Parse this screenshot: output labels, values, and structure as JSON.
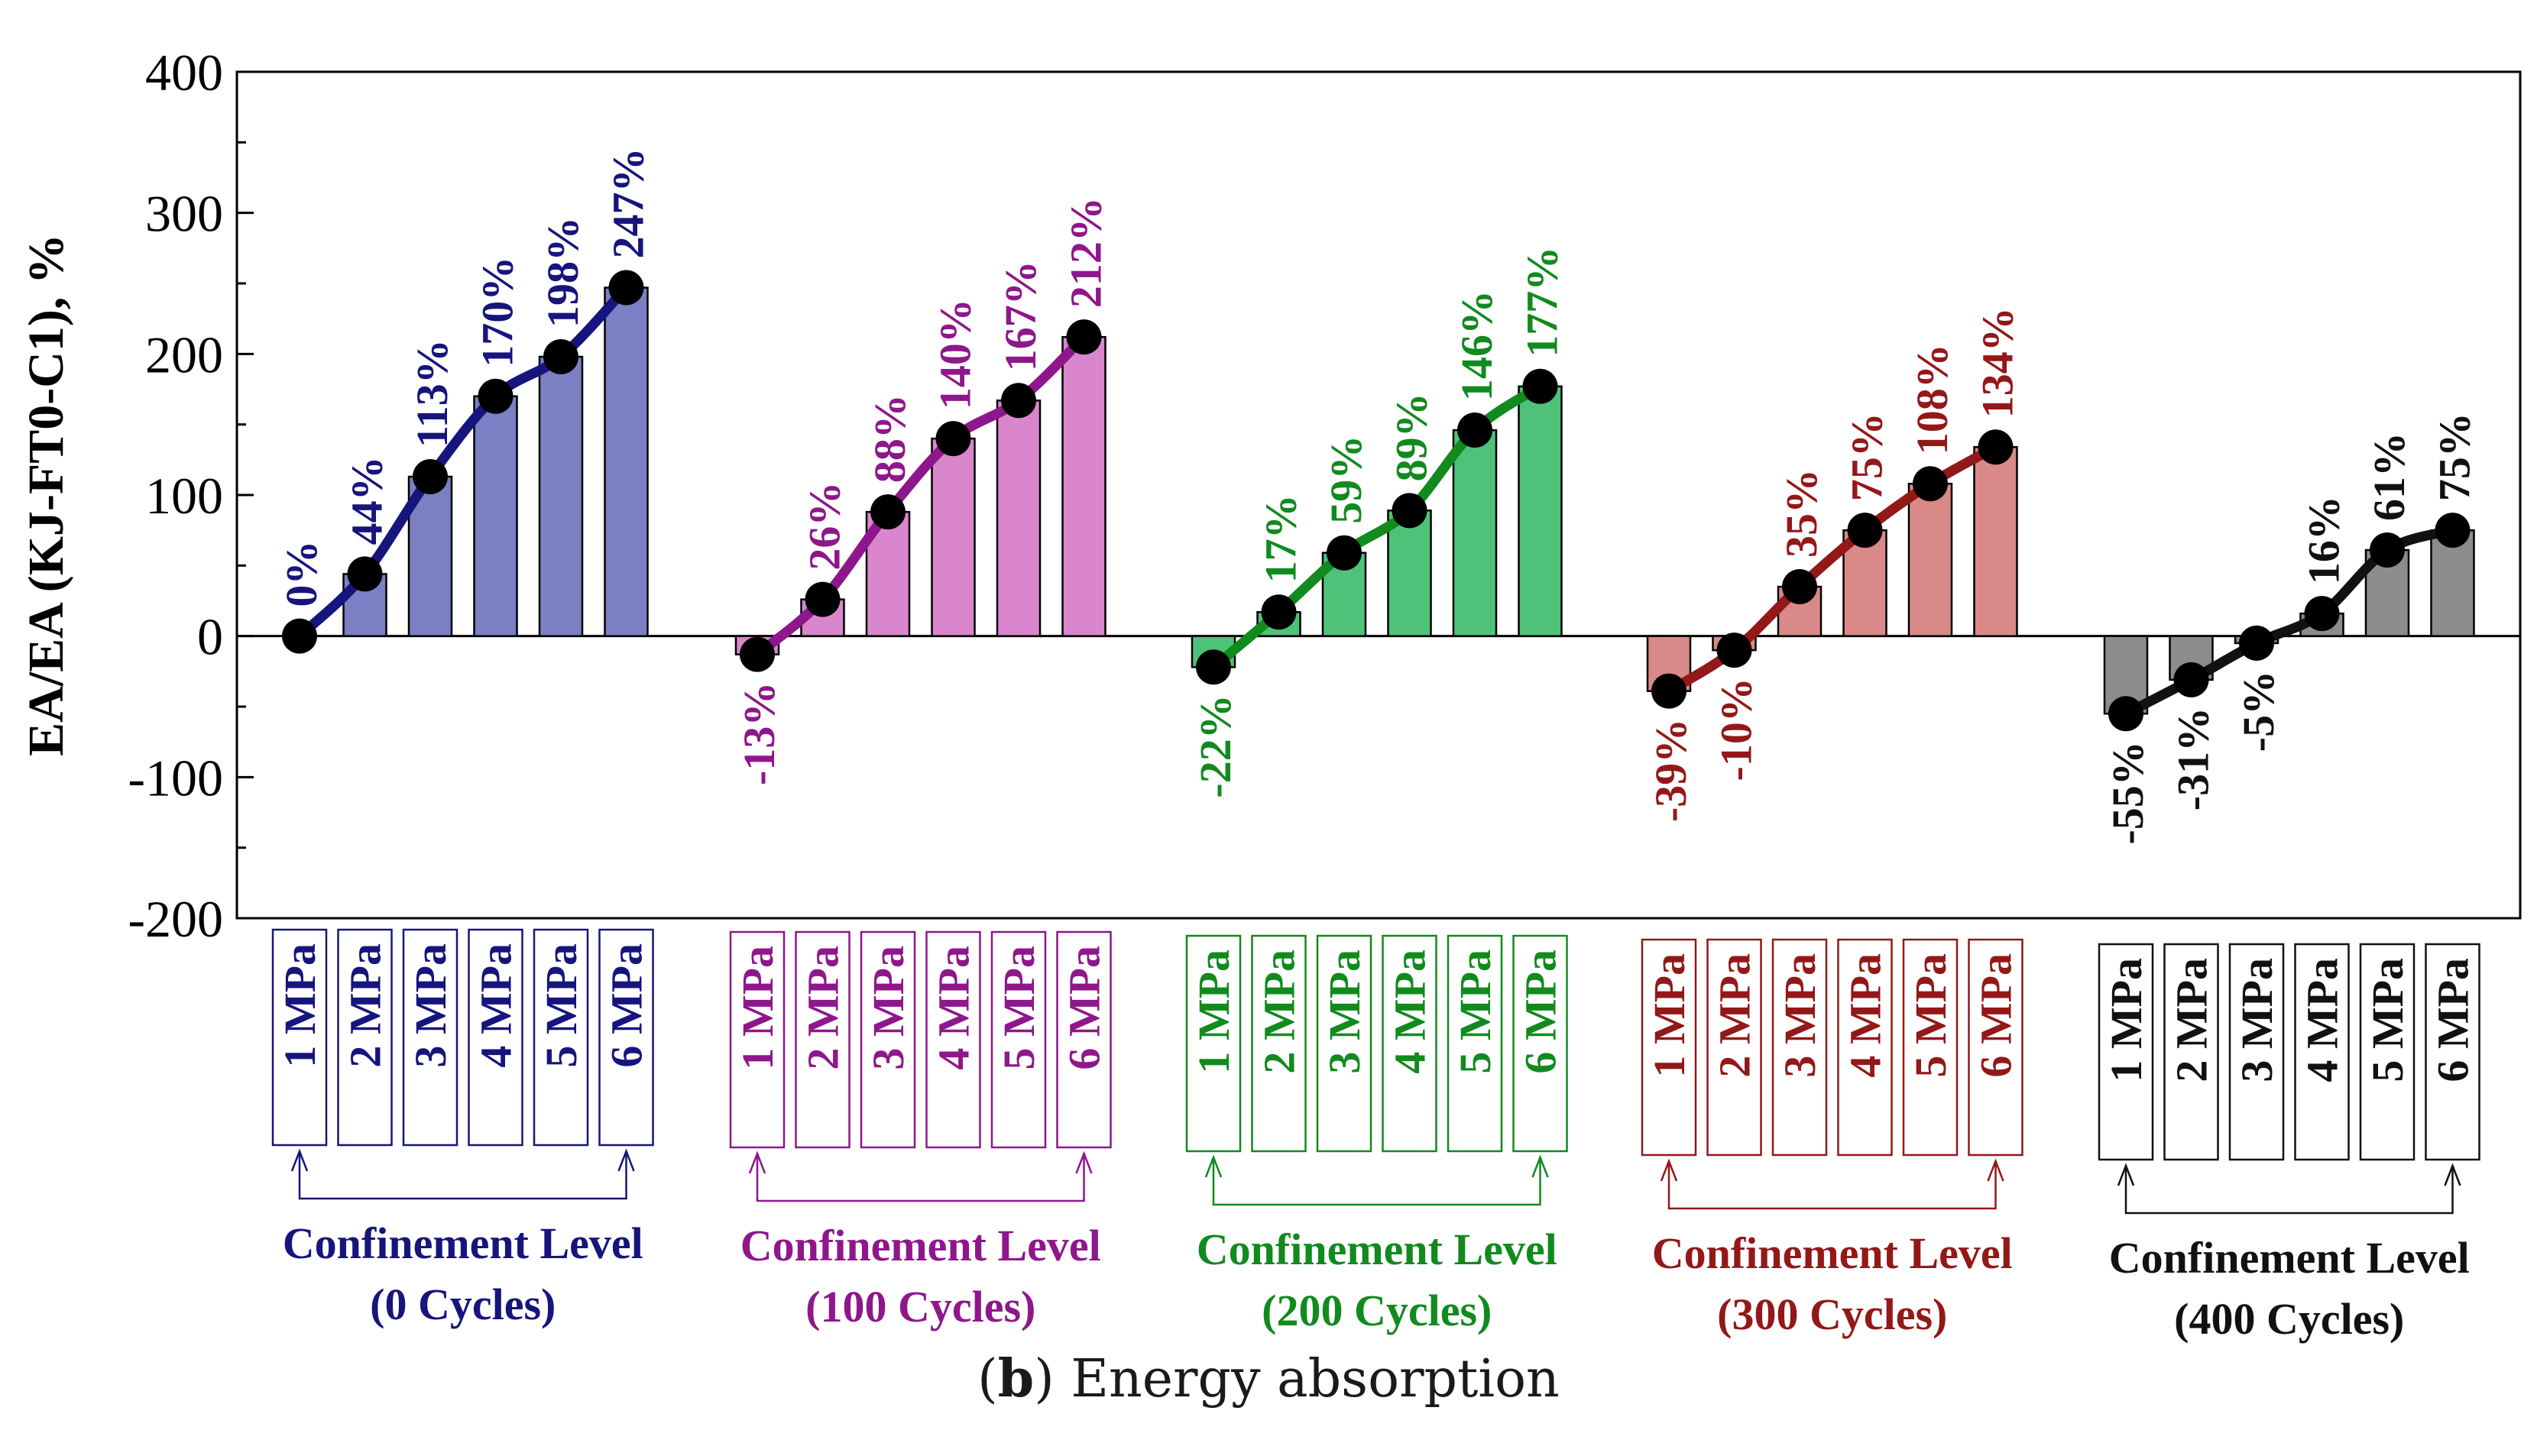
{
  "caption": {
    "letter": "b",
    "text": "Energy absorption"
  },
  "chart_data": {
    "type": "bar",
    "title": "",
    "xlabel": "",
    "ylabel": "EA/EA (KJ-FT0-C1), %",
    "ylim": [
      -200,
      400
    ],
    "yticks": [
      400,
      300,
      200,
      100,
      0,
      -100,
      -200
    ],
    "pressure_labels": [
      "1 MPa",
      "2 MPa",
      "3 MPa",
      "4 MPa",
      "5 MPa",
      "6 MPa"
    ],
    "series": [
      {
        "name": "0 Cycles",
        "group_label": "Confinement Level",
        "cycles_label": "(0 Cycles)",
        "values": [
          0,
          44,
          113,
          170,
          198,
          247
        ],
        "value_labels": [
          "0%",
          "44%",
          "113%",
          "170%",
          "198%",
          "247%"
        ],
        "bar_color": "#7b80c4",
        "line_color": "#16157d"
      },
      {
        "name": "100 Cycles",
        "group_label": "Confinement Level",
        "cycles_label": "(100 Cycles)",
        "values": [
          -13,
          26,
          88,
          140,
          167,
          212
        ],
        "value_labels": [
          "-13%",
          "26%",
          "88%",
          "140%",
          "167%",
          "212%"
        ],
        "bar_color": "#da86cd",
        "line_color": "#8e178b"
      },
      {
        "name": "200 Cycles",
        "group_label": "Confinement Level",
        "cycles_label": "(200 Cycles)",
        "values": [
          -22,
          17,
          59,
          89,
          146,
          177
        ],
        "value_labels": [
          "-22%",
          "17%",
          "59%",
          "89%",
          "146%",
          "177%"
        ],
        "bar_color": "#4fc27a",
        "line_color": "#118a1e"
      },
      {
        "name": "300 Cycles",
        "group_label": "Confinement Level",
        "cycles_label": "(300 Cycles)",
        "values": [
          -39,
          -10,
          35,
          75,
          108,
          134
        ],
        "value_labels": [
          "-39%",
          "-10%",
          "35%",
          "75%",
          "108%",
          "134%"
        ],
        "bar_color": "#d98a88",
        "line_color": "#931818"
      },
      {
        "name": "400 Cycles",
        "group_label": "Confinement Level",
        "cycles_label": "(400 Cycles)",
        "values": [
          -55,
          -31,
          -5,
          16,
          61,
          75
        ],
        "value_labels": [
          "-55%",
          "-31%",
          "-5%",
          "16%",
          "61%",
          "75%"
        ],
        "bar_color": "#8c8c8c",
        "line_color": "#111111"
      }
    ]
  }
}
